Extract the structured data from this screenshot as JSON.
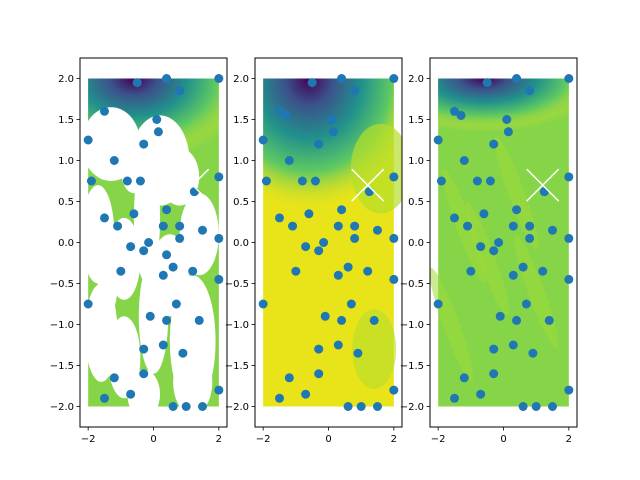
{
  "figure": {
    "background": "#ffffff"
  },
  "colors": {
    "contour_low": "#440154",
    "contour_mid": "#21918c",
    "contour_high": "#fde725",
    "field_green": "#86d549",
    "field_yellow": "#e8e419",
    "point_color": "#1f77b4",
    "marker_x_color": "#ffffff"
  },
  "chart_data": [
    {
      "type": "scatter",
      "panel": "left",
      "description_kind": "filled contour (masked, patchy) with scatter points",
      "xlim": [
        -2.25,
        2.25
      ],
      "ylim": [
        -2.25,
        2.25
      ],
      "xticks": [
        "−2",
        "0",
        "2"
      ],
      "yticks": [
        "−2.0",
        "−1.5",
        "−1.0",
        "−0.5",
        "0.0",
        "0.5",
        "1.0",
        "1.5",
        "2.0"
      ],
      "marker_x": [
        1.2,
        0.7
      ],
      "points": [
        [
          -0.5,
          1.95
        ],
        [
          0.4,
          2.0
        ],
        [
          2.0,
          2.0
        ],
        [
          -1.5,
          1.6
        ],
        [
          0.8,
          1.85
        ],
        [
          0.1,
          1.5
        ],
        [
          -2.0,
          1.25
        ],
        [
          0.15,
          1.35
        ],
        [
          -0.3,
          1.2
        ],
        [
          -1.2,
          1.0
        ],
        [
          -1.9,
          0.75
        ],
        [
          -0.8,
          0.75
        ],
        [
          -0.4,
          0.75
        ],
        [
          2.0,
          0.8
        ],
        [
          1.25,
          0.62
        ],
        [
          0.4,
          0.4
        ],
        [
          -0.6,
          0.35
        ],
        [
          -1.5,
          0.3
        ],
        [
          0.3,
          0.2
        ],
        [
          0.8,
          0.2
        ],
        [
          -1.1,
          0.2
        ],
        [
          1.5,
          0.15
        ],
        [
          -0.15,
          0.0
        ],
        [
          0.8,
          0.05
        ],
        [
          2.0,
          0.05
        ],
        [
          -0.3,
          -0.1
        ],
        [
          0.4,
          -0.15
        ],
        [
          -0.7,
          -0.05
        ],
        [
          -1.0,
          -0.35
        ],
        [
          0.6,
          -0.3
        ],
        [
          0.3,
          -0.4
        ],
        [
          1.2,
          -0.35
        ],
        [
          2.0,
          -0.45
        ],
        [
          0.7,
          -0.75
        ],
        [
          -2.0,
          -0.75
        ],
        [
          -0.1,
          -0.9
        ],
        [
          0.4,
          -0.95
        ],
        [
          1.4,
          -0.95
        ],
        [
          -0.3,
          -1.3
        ],
        [
          0.3,
          -1.25
        ],
        [
          0.9,
          -1.35
        ],
        [
          -1.2,
          -1.65
        ],
        [
          -0.3,
          -1.6
        ],
        [
          -1.5,
          -1.9
        ],
        [
          -0.7,
          -1.85
        ],
        [
          0.6,
          -2.0
        ],
        [
          1.0,
          -2.0
        ],
        [
          1.5,
          -2.0
        ],
        [
          2.0,
          -1.8
        ]
      ]
    },
    {
      "type": "scatter",
      "panel": "middle",
      "description_kind": "filled contour (smooth) with scatter points",
      "xlim": [
        -2.25,
        2.25
      ],
      "ylim": [
        -2.25,
        2.25
      ],
      "xticks": [
        "−2",
        "0",
        "2"
      ],
      "yticks": [
        "−2.0",
        "−1.5",
        "−1.0",
        "−0.5",
        "0.0",
        "0.5",
        "1.0",
        "1.5",
        "2.0"
      ],
      "marker_x": [
        1.2,
        0.7
      ],
      "points": [
        [
          -0.5,
          1.95
        ],
        [
          0.4,
          2.0
        ],
        [
          2.0,
          2.0
        ],
        [
          -1.5,
          1.6
        ],
        [
          -1.3,
          1.55
        ],
        [
          0.8,
          1.85
        ],
        [
          0.1,
          1.5
        ],
        [
          -2.0,
          1.25
        ],
        [
          0.15,
          1.35
        ],
        [
          -0.3,
          1.2
        ],
        [
          -1.2,
          1.0
        ],
        [
          -1.9,
          0.75
        ],
        [
          -0.8,
          0.75
        ],
        [
          -0.4,
          0.75
        ],
        [
          2.0,
          0.8
        ],
        [
          1.25,
          0.62
        ],
        [
          0.4,
          0.4
        ],
        [
          -0.6,
          0.35
        ],
        [
          -1.5,
          0.3
        ],
        [
          0.3,
          0.2
        ],
        [
          0.8,
          0.2
        ],
        [
          -1.1,
          0.2
        ],
        [
          1.5,
          0.15
        ],
        [
          -0.15,
          0.0
        ],
        [
          0.8,
          0.05
        ],
        [
          2.0,
          0.05
        ],
        [
          -0.3,
          -0.1
        ],
        [
          -0.7,
          -0.05
        ],
        [
          -1.0,
          -0.35
        ],
        [
          0.6,
          -0.3
        ],
        [
          0.3,
          -0.4
        ],
        [
          1.2,
          -0.35
        ],
        [
          2.0,
          -0.45
        ],
        [
          0.7,
          -0.75
        ],
        [
          -2.0,
          -0.75
        ],
        [
          -0.1,
          -0.9
        ],
        [
          0.4,
          -0.95
        ],
        [
          1.4,
          -0.95
        ],
        [
          -0.3,
          -1.3
        ],
        [
          0.3,
          -1.25
        ],
        [
          0.9,
          -1.35
        ],
        [
          -1.2,
          -1.65
        ],
        [
          -0.3,
          -1.6
        ],
        [
          -1.5,
          -1.9
        ],
        [
          -0.7,
          -1.85
        ],
        [
          0.6,
          -2.0
        ],
        [
          1.0,
          -2.0
        ],
        [
          1.5,
          -2.0
        ],
        [
          2.0,
          -1.8
        ]
      ]
    },
    {
      "type": "scatter",
      "panel": "right",
      "description_kind": "filled contour (streaky) with scatter points",
      "xlim": [
        -2.25,
        2.25
      ],
      "ylim": [
        -2.25,
        2.25
      ],
      "xticks": [
        "−2",
        "0",
        "2"
      ],
      "yticks": [
        "−2.0",
        "−1.5",
        "−1.0",
        "−0.5",
        "0.0",
        "0.5",
        "1.0",
        "1.5",
        "2.0"
      ],
      "marker_x": [
        1.2,
        0.7
      ],
      "points": [
        [
          -0.5,
          1.95
        ],
        [
          0.4,
          2.0
        ],
        [
          2.0,
          2.0
        ],
        [
          -1.5,
          1.6
        ],
        [
          -1.3,
          1.55
        ],
        [
          0.8,
          1.85
        ],
        [
          0.1,
          1.5
        ],
        [
          -2.0,
          1.25
        ],
        [
          0.15,
          1.35
        ],
        [
          -0.3,
          1.2
        ],
        [
          -1.2,
          1.0
        ],
        [
          -1.9,
          0.75
        ],
        [
          -0.8,
          0.75
        ],
        [
          -0.4,
          0.75
        ],
        [
          2.0,
          0.8
        ],
        [
          1.25,
          0.62
        ],
        [
          0.4,
          0.4
        ],
        [
          -0.6,
          0.35
        ],
        [
          -1.5,
          0.3
        ],
        [
          0.3,
          0.2
        ],
        [
          0.8,
          0.2
        ],
        [
          -1.1,
          0.2
        ],
        [
          1.5,
          0.15
        ],
        [
          -0.15,
          0.0
        ],
        [
          0.8,
          0.05
        ],
        [
          2.0,
          0.05
        ],
        [
          -0.3,
          -0.1
        ],
        [
          -0.7,
          -0.05
        ],
        [
          -1.0,
          -0.35
        ],
        [
          0.6,
          -0.3
        ],
        [
          0.3,
          -0.4
        ],
        [
          1.2,
          -0.35
        ],
        [
          2.0,
          -0.45
        ],
        [
          0.7,
          -0.75
        ],
        [
          -2.0,
          -0.75
        ],
        [
          -0.1,
          -0.9
        ],
        [
          0.4,
          -0.95
        ],
        [
          1.4,
          -0.95
        ],
        [
          -0.3,
          -1.3
        ],
        [
          0.3,
          -1.25
        ],
        [
          0.9,
          -1.35
        ],
        [
          -1.2,
          -1.65
        ],
        [
          -0.3,
          -1.6
        ],
        [
          -1.5,
          -1.9
        ],
        [
          -0.7,
          -1.85
        ],
        [
          0.6,
          -2.0
        ],
        [
          1.0,
          -2.0
        ],
        [
          1.5,
          -2.0
        ],
        [
          2.0,
          -1.8
        ]
      ]
    }
  ]
}
